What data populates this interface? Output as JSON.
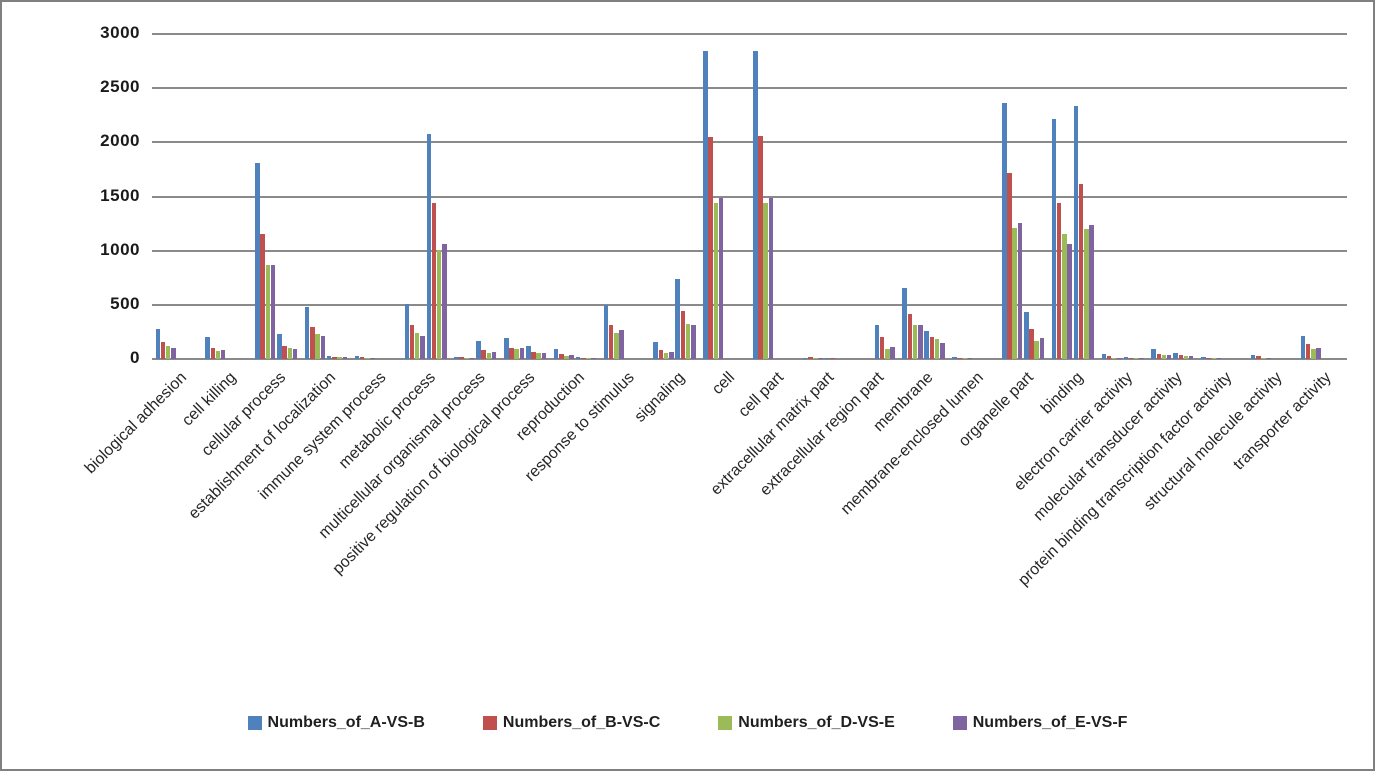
{
  "chart_data": {
    "type": "bar",
    "title": "",
    "xlabel": "",
    "ylabel": "",
    "ylim": [
      0,
      3000
    ],
    "yticks": [
      0,
      500,
      1000,
      1500,
      2000,
      2500,
      3000
    ],
    "ytick_labels": [
      "0",
      "500",
      "1000",
      "1500",
      "2000",
      "2500",
      "3000"
    ],
    "grid": true,
    "legend_position": "bottom",
    "bar_subgroups_per_category": 2,
    "categories": [
      "biological adhesion",
      "cell killing",
      "cellular process",
      "establishment of localization",
      "immune system process",
      "metabolic process",
      "multicellular organismal process",
      "positive regulation of biological process",
      "reproduction",
      "response to stimulus",
      "signaling",
      "cell",
      "cell part",
      "extracellular matrix part",
      "extracellular region part",
      "membrane",
      "membrane-enclosed lumen",
      "organelle part",
      "binding",
      "electron carrier activity",
      "molecular transducer activity",
      "protein binding transcription factor activity",
      "structural molecule activity",
      "transporter activity"
    ],
    "series": [
      {
        "name": "Numbers_of_A-VS-B",
        "color": "#4F81BD",
        "values": [
          [
            275,
            0
          ],
          [
            200,
            0
          ],
          [
            1810,
            230
          ],
          [
            480,
            30
          ],
          [
            25,
            0
          ],
          [
            505,
            2080
          ],
          [
            20,
            170
          ],
          [
            190,
            125
          ],
          [
            90,
            20
          ],
          [
            495,
            0
          ],
          [
            160,
            740
          ],
          [
            2840,
            0
          ],
          [
            2840,
            0
          ],
          [
            10,
            12
          ],
          [
            0,
            310
          ],
          [
            660,
            260
          ],
          [
            15,
            0
          ],
          [
            2360,
            430
          ],
          [
            2220,
            2335
          ],
          [
            45,
            20
          ],
          [
            90,
            55
          ],
          [
            22,
            0
          ],
          [
            35,
            0
          ],
          [
            210,
            0
          ]
        ]
      },
      {
        "name": "Numbers_of_B-VS-C",
        "color": "#C0504D",
        "values": [
          [
            155,
            0
          ],
          [
            100,
            0
          ],
          [
            1150,
            120
          ],
          [
            300,
            20
          ],
          [
            15,
            0
          ],
          [
            315,
            1440
          ],
          [
            15,
            85
          ],
          [
            105,
            65
          ],
          [
            45,
            10
          ],
          [
            315,
            0
          ],
          [
            80,
            440
          ],
          [
            2050,
            0
          ],
          [
            2060,
            0
          ],
          [
            15,
            5
          ],
          [
            0,
            200
          ],
          [
            420,
            205
          ],
          [
            8,
            0
          ],
          [
            1715,
            275
          ],
          [
            1440,
            1615
          ],
          [
            25,
            10
          ],
          [
            50,
            35
          ],
          [
            12,
            0
          ],
          [
            28,
            0
          ],
          [
            135,
            0
          ]
        ]
      },
      {
        "name": "Numbers_of_D-VS-E",
        "color": "#9BBB59",
        "values": [
          [
            120,
            0
          ],
          [
            75,
            0
          ],
          [
            870,
            105
          ],
          [
            230,
            15
          ],
          [
            10,
            0
          ],
          [
            245,
            1010
          ],
          [
            10,
            60
          ],
          [
            95,
            60
          ],
          [
            30,
            8
          ],
          [
            245,
            0
          ],
          [
            60,
            325
          ],
          [
            1440,
            0
          ],
          [
            1440,
            0
          ],
          [
            5,
            0
          ],
          [
            0,
            90
          ],
          [
            310,
            185
          ],
          [
            5,
            0
          ],
          [
            1210,
            170
          ],
          [
            1150,
            1200
          ],
          [
            8,
            5
          ],
          [
            40,
            30
          ],
          [
            8,
            0
          ],
          [
            5,
            0
          ],
          [
            90,
            0
          ]
        ]
      },
      {
        "name": "Numbers_of_E-VS-F",
        "color": "#8064A2",
        "values": [
          [
            105,
            0
          ],
          [
            80,
            0
          ],
          [
            870,
            90
          ],
          [
            215,
            15
          ],
          [
            10,
            0
          ],
          [
            215,
            1060
          ],
          [
            10,
            65
          ],
          [
            100,
            55
          ],
          [
            35,
            8
          ],
          [
            265,
            0
          ],
          [
            62,
            315
          ],
          [
            1485,
            0
          ],
          [
            1490,
            0
          ],
          [
            5,
            0
          ],
          [
            0,
            110
          ],
          [
            315,
            150
          ],
          [
            5,
            0
          ],
          [
            1255,
            190
          ],
          [
            1060,
            1240
          ],
          [
            5,
            3
          ],
          [
            40,
            25
          ],
          [
            8,
            0
          ],
          [
            5,
            0
          ],
          [
            100,
            0
          ]
        ]
      }
    ],
    "colors": {
      "gridline": "#8a8a8a",
      "background": "#ffffff",
      "border": "#808080",
      "series_blue": "#4F81BD",
      "series_red": "#C0504D",
      "series_green": "#9BBB59",
      "series_purple": "#8064A2"
    }
  }
}
